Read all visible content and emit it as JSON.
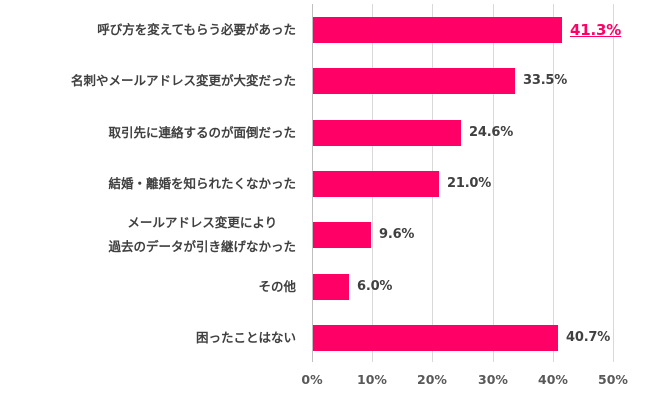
{
  "chart_data": {
    "type": "bar",
    "orientation": "horizontal",
    "title": "",
    "xlabel": "",
    "ylabel": "",
    "xlim": [
      0,
      50
    ],
    "grid": true,
    "legend": null,
    "bar_color": "#ff0066",
    "highlight_color": "#ff0066",
    "categories": [
      "呼び方を変えてもらう必要があった",
      "名刺やメールアドレス変更が大変だった",
      "取引先に連絡するのが面倒だった",
      "結婚・離婚を知られたくなかった",
      "メールアドレス変更により過去のデータが引き継げなかった",
      "その他",
      "困ったことはない"
    ],
    "category_lines": [
      [
        "呼び方を変えてもらう必要があった"
      ],
      [
        "名刺やメールアドレス変更が大変だった"
      ],
      [
        "取引先に連絡するのが面倒だった"
      ],
      [
        "結婚・離婚を知られたくなかった"
      ],
      [
        "メールアドレス変更により",
        "過去のデータが引き継げなかった"
      ],
      [
        "その他"
      ],
      [
        "困ったことはない"
      ]
    ],
    "values": [
      41.3,
      33.5,
      24.6,
      21.0,
      9.6,
      6.0,
      40.7
    ],
    "value_labels": [
      "41.3%",
      "33.5%",
      "24.6%",
      "21.0%",
      "9.6%",
      "6.0%",
      "40.7%"
    ],
    "highlighted_index": 0,
    "x_ticks": [
      0,
      10,
      20,
      30,
      40,
      50
    ],
    "x_tick_labels": [
      "0%",
      "10%",
      "20%",
      "30%",
      "40%",
      "50%"
    ]
  }
}
